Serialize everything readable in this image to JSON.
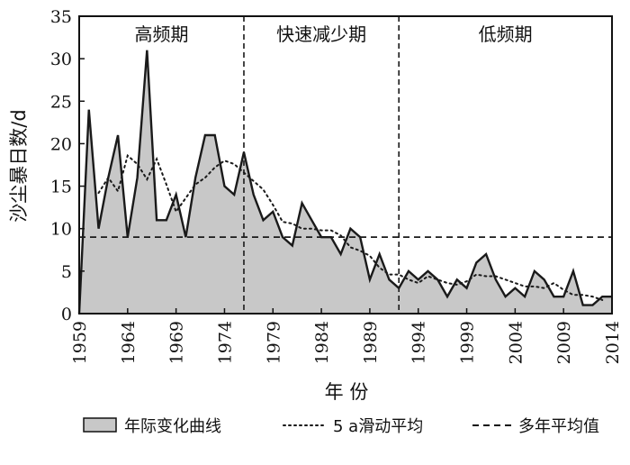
{
  "chart_data": {
    "type": "area",
    "xlabel": "年 份",
    "ylabel": "沙尘暴日数/d",
    "xlim": [
      1959,
      2014
    ],
    "ylim": [
      0,
      35
    ],
    "x_ticks": [
      "1959",
      "1964",
      "1969",
      "1974",
      "1979",
      "1984",
      "1989",
      "1994",
      "1999",
      "2004",
      "2009",
      "2014"
    ],
    "y_ticks": [
      "0",
      "5",
      "10",
      "15",
      "20",
      "25",
      "30",
      "35"
    ],
    "period_dividers": [
      1976,
      1992
    ],
    "period_labels": [
      {
        "text": "高频期",
        "x": 1967.5
      },
      {
        "text": "快速减少期",
        "x": 1984
      },
      {
        "text": "低频期",
        "x": 2003
      }
    ],
    "x": [
      1959,
      1960,
      1961,
      1962,
      1963,
      1964,
      1965,
      1966,
      1967,
      1968,
      1969,
      1970,
      1971,
      1972,
      1973,
      1974,
      1975,
      1976,
      1977,
      1978,
      1979,
      1980,
      1981,
      1982,
      1983,
      1984,
      1985,
      1986,
      1987,
      1988,
      1989,
      1990,
      1991,
      1992,
      1993,
      1994,
      1995,
      1996,
      1997,
      1998,
      1999,
      2000,
      2001,
      2002,
      2003,
      2004,
      2005,
      2006,
      2007,
      2008,
      2009,
      2010,
      2011,
      2012,
      2013,
      2014
    ],
    "series": [
      {
        "name": "年际变化曲线",
        "style": "area",
        "values": [
          0,
          24,
          10,
          16,
          21,
          9,
          16,
          31,
          11,
          11,
          14,
          9,
          16,
          21,
          21,
          15,
          14,
          19,
          14,
          11,
          12,
          9,
          8,
          13,
          11,
          9,
          9,
          7,
          10,
          9,
          4,
          7,
          4,
          3,
          5,
          4,
          5,
          4,
          2,
          4,
          3,
          6,
          7,
          4,
          2,
          3,
          2,
          5,
          4,
          2,
          2,
          5,
          1,
          1,
          2,
          2
        ]
      },
      {
        "name": "5 a滑动平均",
        "style": "dotted",
        "x": [
          1961,
          1962,
          1963,
          1964,
          1965,
          1966,
          1967,
          1968,
          1969,
          1970,
          1971,
          1972,
          1973,
          1974,
          1975,
          1976,
          1977,
          1978,
          1979,
          1980,
          1981,
          1982,
          1983,
          1984,
          1985,
          1986,
          1987,
          1988,
          1989,
          1990,
          1991,
          1992,
          1993,
          1994,
          1995,
          1996,
          1997,
          1998,
          1999,
          2000,
          2001,
          2002,
          2003,
          2004,
          2005,
          2006,
          2007,
          2008,
          2009,
          2010,
          2011,
          2012,
          2013
        ],
        "values": [
          14.2,
          16,
          14.4,
          18.6,
          17.6,
          15.8,
          18.2,
          15.2,
          12,
          13.6,
          15.2,
          16,
          17.2,
          18,
          17.6,
          16.6,
          15.6,
          14.6,
          12.8,
          10.8,
          10.6,
          10,
          10,
          9.8,
          9.8,
          9.2,
          7.8,
          7.4,
          6.8,
          5.4,
          4.6,
          4.6,
          4,
          3.6,
          4.4,
          4,
          3.6,
          3.4,
          3.8,
          4.6,
          4.4,
          4.4,
          4,
          3.6,
          3.2,
          3.2,
          3,
          3.6,
          2.8,
          2.2,
          2.2,
          2,
          1.6
        ]
      },
      {
        "name": "多年平均值",
        "style": "dashed",
        "constant": 9
      }
    ],
    "colors": {
      "area_fill": "#c8c8c8",
      "line": "#1a1a1a"
    }
  },
  "legend": [
    {
      "label": "年际变化曲线",
      "style": "area"
    },
    {
      "label": "5 a滑动平均",
      "style": "dotted"
    },
    {
      "label": "多年平均值",
      "style": "dashed"
    }
  ]
}
